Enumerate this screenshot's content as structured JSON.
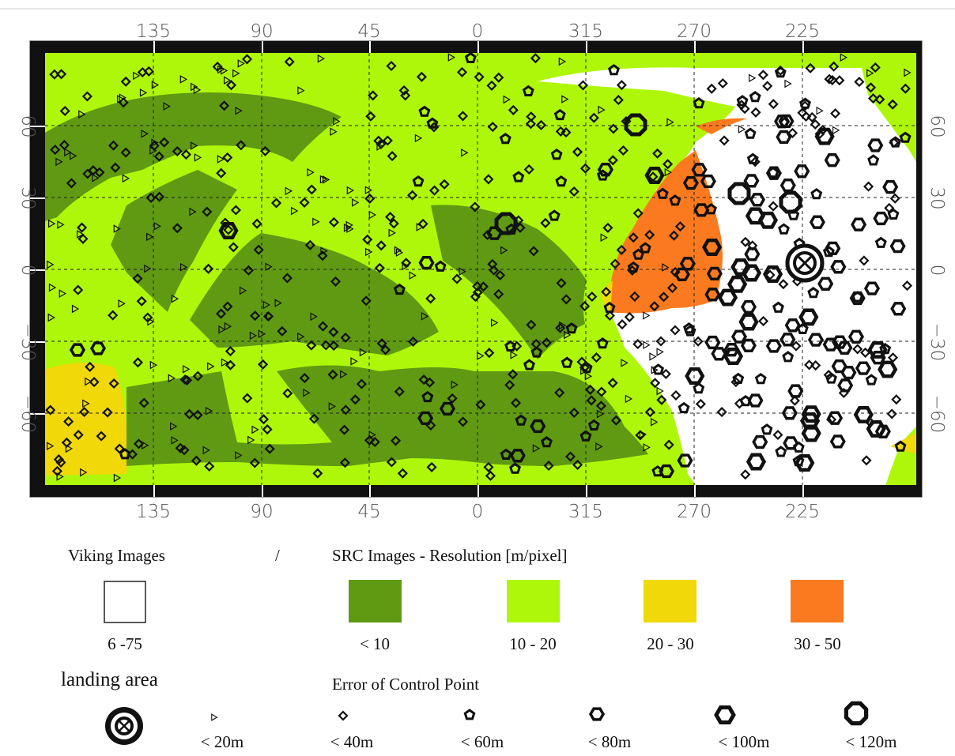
{
  "map": {
    "top_lon_labels": [
      "135",
      "90",
      "45",
      "0",
      "315",
      "270",
      "225"
    ],
    "bottom_lon_labels": [
      "135",
      "90",
      "45",
      "0",
      "315",
      "270",
      "225"
    ],
    "left_lat_labels": [
      "60",
      "30",
      "0",
      "−30",
      "−60"
    ],
    "right_lat_labels": [
      "60",
      "30",
      "0",
      "−30",
      "−60"
    ]
  },
  "legend": {
    "viking_title": "Viking Images",
    "separator": "/",
    "src_title": "SRC Images - Resolution [m/pixel]",
    "swatches": [
      {
        "label": "6 -75",
        "color": "#ffffff"
      },
      {
        "label": "< 10",
        "color": "#5f9a12"
      },
      {
        "label": "10 - 20",
        "color": "#aef70a"
      },
      {
        "label": "20 - 30",
        "color": "#f1d808"
      },
      {
        "label": "30 - 50",
        "color": "#fb7a1f"
      }
    ],
    "landing_title": "landing area",
    "error_title": "Error of Control Point",
    "errors": [
      {
        "label": "< 20m",
        "shape": "triangle-icon"
      },
      {
        "label": "< 40m",
        "shape": "diamond-icon"
      },
      {
        "label": "< 60m",
        "shape": "pentagon-icon"
      },
      {
        "label": "< 80m",
        "shape": "hexagon-icon"
      },
      {
        "label": "< 100m",
        "shape": "hexagon-icon"
      },
      {
        "label": "< 120m",
        "shape": "octagon-icon"
      }
    ]
  },
  "colors": {
    "lt10": "#5f9a12",
    "r10_20": "#aef70a",
    "r20_30": "#f1d808",
    "r30_50": "#fb7a1f",
    "viking": "#ffffff"
  }
}
